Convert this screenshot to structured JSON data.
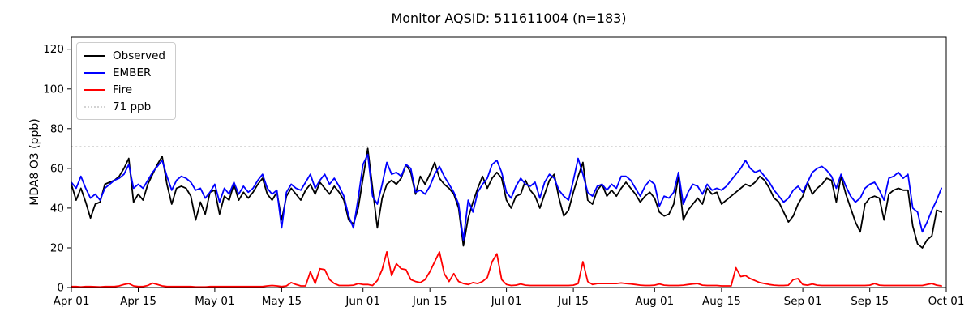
{
  "chart_data": {
    "type": "line",
    "title": "Monitor AQSID: 511611004 (n=183)",
    "ylabel": "MDA8 O3 (ppb)",
    "xlabel": "",
    "ylim": [
      0,
      126
    ],
    "y_ticks": [
      0,
      20,
      40,
      60,
      80,
      100,
      120
    ],
    "grid": false,
    "legend_position": "upper left",
    "legend": [
      "Observed",
      "EMBER",
      "Fire",
      "71 ppb"
    ],
    "n_days": 183,
    "x_ticks": [
      {
        "label": "Apr 01",
        "day": 0
      },
      {
        "label": "Apr 15",
        "day": 14
      },
      {
        "label": "May 01",
        "day": 30
      },
      {
        "label": "May 15",
        "day": 44
      },
      {
        "label": "Jun 01",
        "day": 61
      },
      {
        "label": "Jun 15",
        "day": 75
      },
      {
        "label": "Jul 01",
        "day": 91
      },
      {
        "label": "Jul 15",
        "day": 105
      },
      {
        "label": "Aug 01",
        "day": 122
      },
      {
        "label": "Aug 15",
        "day": 136
      },
      {
        "label": "Sep 01",
        "day": 153
      },
      {
        "label": "Sep 15",
        "day": 167
      },
      {
        "label": "Oct 01",
        "day": 183
      }
    ],
    "reference_line": {
      "label": "71 ppb",
      "value": 71,
      "color": "#d3d3d3",
      "style": "dotted"
    },
    "series": [
      {
        "name": "Observed",
        "color": "#000000",
        "style": "solid",
        "values": [
          52,
          44,
          50,
          43,
          35,
          42,
          43,
          52,
          53,
          54,
          56,
          60,
          65,
          43,
          47,
          44,
          52,
          57,
          62,
          66,
          52,
          42,
          50,
          51,
          50,
          46,
          34,
          43,
          37,
          48,
          49,
          37,
          46,
          44,
          52,
          44,
          48,
          45,
          48,
          52,
          55,
          47,
          44,
          48,
          34,
          46,
          50,
          47,
          44,
          49,
          52,
          47,
          53,
          50,
          47,
          51,
          48,
          44,
          34,
          32,
          40,
          55,
          70,
          50,
          30,
          45,
          52,
          54,
          52,
          55,
          62,
          58,
          47,
          56,
          52,
          57,
          63,
          55,
          52,
          50,
          47,
          40,
          21,
          35,
          43,
          50,
          56,
          50,
          55,
          58,
          55,
          44,
          40,
          46,
          47,
          54,
          49,
          46,
          40,
          47,
          54,
          57,
          45,
          36,
          39,
          48,
          56,
          63,
          44,
          42,
          49,
          52,
          46,
          49,
          46,
          50,
          53,
          50,
          47,
          43,
          46,
          48,
          45,
          38,
          36,
          37,
          42,
          56,
          34,
          39,
          42,
          45,
          42,
          50,
          47,
          48,
          42,
          44,
          46,
          48,
          50,
          52,
          51,
          53,
          56,
          54,
          50,
          45,
          43,
          38,
          33,
          36,
          42,
          46,
          53,
          47,
          50,
          52,
          55,
          54,
          43,
          56,
          47,
          40,
          33,
          28,
          42,
          45,
          46,
          45,
          34,
          47,
          49,
          50,
          49,
          49,
          31,
          22,
          20,
          24,
          26,
          39,
          38
        ]
      },
      {
        "name": "EMBER",
        "color": "#0000ff",
        "style": "solid",
        "values": [
          53,
          50,
          56,
          50,
          45,
          47,
          44,
          50,
          52,
          54,
          55,
          57,
          62,
          50,
          52,
          50,
          54,
          58,
          61,
          64,
          56,
          49,
          54,
          56,
          55,
          53,
          49,
          50,
          45,
          48,
          52,
          43,
          50,
          47,
          53,
          47,
          51,
          48,
          50,
          54,
          57,
          50,
          47,
          49,
          30,
          48,
          52,
          50,
          49,
          53,
          57,
          50,
          54,
          57,
          52,
          55,
          51,
          46,
          36,
          30,
          45,
          62,
          67,
          46,
          42,
          52,
          63,
          57,
          58,
          56,
          62,
          60,
          48,
          49,
          47,
          51,
          57,
          61,
          56,
          52,
          48,
          42,
          24,
          44,
          38,
          48,
          52,
          55,
          62,
          64,
          58,
          48,
          45,
          51,
          55,
          52,
          51,
          53,
          45,
          53,
          57,
          55,
          49,
          46,
          44,
          54,
          65,
          57,
          48,
          46,
          51,
          52,
          49,
          52,
          50,
          56,
          56,
          54,
          50,
          46,
          51,
          54,
          52,
          41,
          46,
          45,
          48,
          58,
          42,
          48,
          52,
          51,
          47,
          52,
          49,
          50,
          49,
          51,
          54,
          57,
          60,
          64,
          60,
          58,
          59,
          56,
          53,
          49,
          46,
          43,
          45,
          49,
          51,
          48,
          53,
          58,
          60,
          61,
          59,
          56,
          50,
          57,
          51,
          46,
          43,
          45,
          50,
          52,
          53,
          49,
          44,
          55,
          56,
          58,
          55,
          57,
          40,
          38,
          28,
          33,
          39,
          44,
          50
        ]
      },
      {
        "name": "Fire",
        "color": "#ff0000",
        "style": "solid",
        "values": [
          0.5,
          0.5,
          0.3,
          0.5,
          0.5,
          0.4,
          0.3,
          0.5,
          0.5,
          0.5,
          0.8,
          1.5,
          2,
          0.8,
          0.5,
          0.5,
          1,
          2.2,
          1.5,
          0.8,
          0.5,
          0.5,
          0.5,
          0.5,
          0.5,
          0.5,
          0.3,
          0.3,
          0.3,
          0.5,
          0.5,
          0.5,
          0.5,
          0.5,
          0.5,
          0.5,
          0.5,
          0.5,
          0.5,
          0.5,
          0.5,
          0.8,
          1,
          0.8,
          0.5,
          0.8,
          2.5,
          1.5,
          0.8,
          0.8,
          8,
          2,
          9.5,
          9,
          4,
          2,
          1,
          1,
          1,
          1.2,
          2,
          1.5,
          1.5,
          1,
          3.5,
          9,
          18,
          6,
          12,
          9.5,
          9,
          4,
          3,
          2.5,
          4,
          8,
          13,
          18,
          7,
          3,
          7,
          3,
          2,
          1.5,
          2.5,
          2,
          3,
          5,
          13,
          17,
          4,
          1.5,
          1,
          1.2,
          1.8,
          1.2,
          1,
          1,
          1,
          1,
          1,
          1,
          1,
          1,
          1,
          1.2,
          2,
          13,
          3,
          1.5,
          2,
          2,
          2,
          2,
          2,
          2.3,
          2,
          1.8,
          1.5,
          1.2,
          1,
          1,
          1.2,
          1.8,
          1.2,
          1,
          1,
          1,
          1.2,
          1.5,
          1.8,
          2,
          1.2,
          1,
          1,
          1,
          0.8,
          0.8,
          0.8,
          10,
          5.5,
          6,
          4.5,
          3.5,
          2.5,
          2,
          1.5,
          1.2,
          1,
          1,
          1.2,
          4,
          4.5,
          1.5,
          1.2,
          1.8,
          1.2,
          1,
          1,
          1,
          1,
          1,
          1,
          1,
          1,
          1,
          1,
          1.2,
          2,
          1.2,
          1,
          1,
          1,
          1,
          1,
          1,
          1,
          1,
          1,
          1.5,
          2,
          1.2,
          0.8
        ]
      }
    ]
  }
}
